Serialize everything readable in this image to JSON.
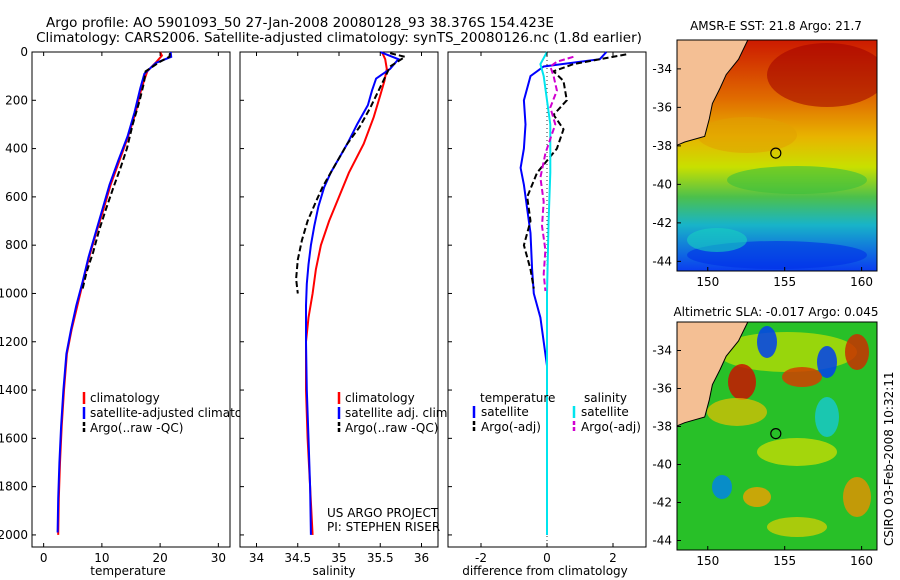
{
  "header": {
    "line1": "Argo profile: AO 5901093_50 27-Jan-2008 20080128_93 38.376S 154.423E",
    "line2": "Climatology: CARS2006. Satellite-adjusted climatology: synTS_20080126.nc (1.8d earlier)"
  },
  "side_label": "CSIRO 03-Feb-2008 10:32:11",
  "project_note": [
    "US ARGO PROJECT",
    "PI: STEPHEN RISER"
  ],
  "colors": {
    "climatology": "#ff0000",
    "satellite": "#0000ff",
    "argo": "#000000",
    "salinity_sat": "#00e5ee",
    "salinity_argo": "#d000d0",
    "land": "#f4bf94"
  },
  "chart_data": [
    {
      "type": "line",
      "id": "temperature",
      "xlabel": "temperature",
      "xlim": [
        -2,
        32
      ],
      "ylim": [
        2050,
        0
      ],
      "xticks": [
        0,
        10,
        20,
        30
      ],
      "yticks": [
        0,
        200,
        400,
        600,
        800,
        1000,
        1200,
        1400,
        1600,
        1800,
        2000
      ],
      "legend": [
        "climatology",
        "satellite-adjusted climatology",
        "Argo(..raw -QC)"
      ],
      "series": [
        {
          "name": "climatology",
          "style": "solid",
          "color": "#ff0000",
          "points": [
            [
              20.0,
              0
            ],
            [
              20.3,
              15
            ],
            [
              19.4,
              40
            ],
            [
              17.8,
              80
            ],
            [
              16.8,
              150
            ],
            [
              15.8,
              250
            ],
            [
              14.5,
              350
            ],
            [
              13.0,
              450
            ],
            [
              11.5,
              550
            ],
            [
              10.3,
              650
            ],
            [
              9.0,
              750
            ],
            [
              7.8,
              850
            ],
            [
              6.8,
              950
            ],
            [
              5.8,
              1050
            ],
            [
              4.8,
              1150
            ],
            [
              4.0,
              1250
            ],
            [
              3.5,
              1400
            ],
            [
              3.1,
              1550
            ],
            [
              2.8,
              1700
            ],
            [
              2.6,
              1850
            ],
            [
              2.5,
              2000
            ]
          ]
        },
        {
          "name": "satellite-adjusted climatology",
          "style": "solid",
          "color": "#0000ff",
          "points": [
            [
              21.8,
              0
            ],
            [
              21.9,
              20
            ],
            [
              19.3,
              45
            ],
            [
              17.3,
              90
            ],
            [
              16.6,
              150
            ],
            [
              15.6,
              250
            ],
            [
              14.4,
              350
            ],
            [
              12.8,
              450
            ],
            [
              11.3,
              550
            ],
            [
              10.1,
              650
            ],
            [
              8.9,
              750
            ],
            [
              7.7,
              850
            ],
            [
              6.7,
              950
            ],
            [
              5.6,
              1050
            ],
            [
              4.7,
              1150
            ],
            [
              3.9,
              1250
            ],
            [
              3.4,
              1400
            ],
            [
              3.0,
              1550
            ],
            [
              2.7,
              1700
            ],
            [
              2.5,
              1850
            ],
            [
              2.4,
              1990
            ]
          ]
        },
        {
          "name": "Argo(..raw -QC)",
          "style": "dashed",
          "color": "#000000",
          "points": [
            [
              21.7,
              5
            ],
            [
              21.6,
              20
            ],
            [
              20.0,
              40
            ],
            [
              17.5,
              80
            ],
            [
              17.2,
              130
            ],
            [
              16.5,
              200
            ],
            [
              15.3,
              300
            ],
            [
              14.3,
              400
            ],
            [
              13.2,
              480
            ],
            [
              12.0,
              560
            ],
            [
              10.7,
              650
            ],
            [
              9.5,
              740
            ],
            [
              8.5,
              830
            ],
            [
              7.4,
              910
            ],
            [
              6.6,
              990
            ]
          ]
        }
      ]
    },
    {
      "type": "line",
      "id": "salinity",
      "xlabel": "salinity",
      "xlim": [
        33.8,
        36.2
      ],
      "ylim": [
        2050,
        0
      ],
      "xticks": [
        34,
        34.5,
        35,
        35.5,
        36
      ],
      "legend": [
        "climatology",
        "satellite adj. clim.",
        "Argo(..raw -QC)"
      ],
      "series": [
        {
          "name": "climatology",
          "style": "solid",
          "color": "#ff0000",
          "points": [
            [
              35.52,
              0
            ],
            [
              35.56,
              30
            ],
            [
              35.58,
              70
            ],
            [
              35.55,
              120
            ],
            [
              35.5,
              180
            ],
            [
              35.42,
              270
            ],
            [
              35.3,
              380
            ],
            [
              35.12,
              500
            ],
            [
              35.0,
              600
            ],
            [
              34.88,
              700
            ],
            [
              34.78,
              800
            ],
            [
              34.72,
              900
            ],
            [
              34.68,
              1000
            ],
            [
              34.63,
              1100
            ],
            [
              34.6,
              1200
            ],
            [
              34.6,
              1400
            ],
            [
              34.62,
              1600
            ],
            [
              34.65,
              1800
            ],
            [
              34.68,
              2000
            ]
          ]
        },
        {
          "name": "satellite adj. clim.",
          "style": "solid",
          "color": "#0000ff",
          "points": [
            [
              35.5,
              0
            ],
            [
              35.72,
              30
            ],
            [
              35.62,
              70
            ],
            [
              35.45,
              110
            ],
            [
              35.4,
              160
            ],
            [
              35.35,
              220
            ],
            [
              35.22,
              300
            ],
            [
              35.1,
              380
            ],
            [
              35.0,
              440
            ],
            [
              34.9,
              500
            ],
            [
              34.82,
              560
            ],
            [
              34.75,
              640
            ],
            [
              34.7,
              720
            ],
            [
              34.66,
              800
            ],
            [
              34.63,
              880
            ],
            [
              34.61,
              960
            ],
            [
              34.6,
              1050
            ],
            [
              34.6,
              1200
            ],
            [
              34.61,
              1400
            ],
            [
              34.63,
              1600
            ],
            [
              34.65,
              1800
            ],
            [
              34.66,
              2000
            ]
          ]
        },
        {
          "name": "Argo(..raw -QC)",
          "style": "dashed",
          "color": "#000000",
          "points": [
            [
              35.62,
              5
            ],
            [
              35.8,
              20
            ],
            [
              35.62,
              60
            ],
            [
              35.55,
              110
            ],
            [
              35.48,
              160
            ],
            [
              35.38,
              230
            ],
            [
              35.25,
              310
            ],
            [
              35.1,
              380
            ],
            [
              35.0,
              440
            ],
            [
              34.9,
              500
            ],
            [
              34.8,
              560
            ],
            [
              34.72,
              620
            ],
            [
              34.62,
              700
            ],
            [
              34.55,
              780
            ],
            [
              34.5,
              860
            ],
            [
              34.48,
              940
            ],
            [
              34.5,
              1000
            ]
          ]
        }
      ]
    },
    {
      "type": "line",
      "id": "difference",
      "xlabel": "difference from climatology",
      "xlim": [
        -3,
        3
      ],
      "ylim": [
        2050,
        0
      ],
      "xticks": [
        -2,
        0,
        2
      ],
      "zero_line": true,
      "legend": {
        "temperature_title": "temperature",
        "salinity_title": "salinity",
        "temperature": [
          "satellite",
          "Argo(-adj)"
        ],
        "salinity": [
          "satellite",
          "Argo(-adj)"
        ]
      },
      "series": [
        {
          "name": "temperature satellite",
          "style": "solid",
          "color": "#0000ff",
          "points": [
            [
              1.8,
              0
            ],
            [
              1.6,
              30
            ],
            [
              -0.1,
              60
            ],
            [
              -0.5,
              100
            ],
            [
              -0.7,
              200
            ],
            [
              -0.65,
              300
            ],
            [
              -0.7,
              400
            ],
            [
              -0.8,
              480
            ],
            [
              -0.7,
              550
            ],
            [
              -0.6,
              650
            ],
            [
              -0.5,
              750
            ],
            [
              -0.45,
              900
            ],
            [
              -0.4,
              1000
            ],
            [
              -0.2,
              1100
            ],
            [
              -0.1,
              1200
            ],
            [
              0,
              1300
            ],
            [
              0,
              2000
            ]
          ]
        },
        {
          "name": "temperature Argo(-adj)",
          "style": "dashed",
          "color": "#000000",
          "points": [
            [
              2.4,
              10
            ],
            [
              1.8,
              25
            ],
            [
              0.8,
              50
            ],
            [
              0.2,
              80
            ],
            [
              0.5,
              120
            ],
            [
              0.6,
              200
            ],
            [
              0.2,
              260
            ],
            [
              0.5,
              320
            ],
            [
              0.3,
              400
            ],
            [
              -0.3,
              500
            ],
            [
              -0.6,
              600
            ],
            [
              -0.5,
              700
            ],
            [
              -0.7,
              800
            ],
            [
              -0.5,
              900
            ],
            [
              -0.4,
              980
            ]
          ]
        },
        {
          "name": "salinity satellite",
          "style": "solid",
          "color": "#00e5ee",
          "points": [
            [
              0.0,
              0
            ],
            [
              -0.2,
              50
            ],
            [
              -0.1,
              100
            ],
            [
              0.0,
              200
            ],
            [
              0.1,
              300
            ],
            [
              0.1,
              500
            ],
            [
              0.05,
              700
            ],
            [
              0.0,
              1000
            ],
            [
              0.0,
              1500
            ],
            [
              0.0,
              2000
            ]
          ]
        },
        {
          "name": "salinity Argo(-adj)",
          "style": "dashed",
          "color": "#d000d0",
          "points": [
            [
              0.8,
              20
            ],
            [
              0.3,
              40
            ],
            [
              0.1,
              60
            ],
            [
              0.2,
              100
            ],
            [
              0.3,
              160
            ],
            [
              0.1,
              230
            ],
            [
              0.25,
              300
            ],
            [
              0.1,
              360
            ],
            [
              -0.05,
              420
            ],
            [
              -0.2,
              520
            ],
            [
              -0.1,
              620
            ],
            [
              -0.15,
              720
            ],
            [
              -0.05,
              820
            ],
            [
              -0.1,
              920
            ],
            [
              -0.05,
              990
            ]
          ]
        }
      ]
    },
    {
      "type": "heatmap",
      "id": "sst_map",
      "title": "AMSR-E SST: 21.8 Argo: 21.7",
      "xlim": [
        148,
        161
      ],
      "ylim": [
        -44.5,
        -32.5
      ],
      "xticks": [
        150,
        155,
        160
      ],
      "yticks": [
        -34,
        -36,
        -38,
        -40,
        -42,
        -44
      ],
      "marker": {
        "lon": 154.423,
        "lat": -38.376
      },
      "coast": [
        [
          152.6,
          -32.5
        ],
        [
          152.0,
          -33.5
        ],
        [
          151.2,
          -34.3
        ],
        [
          150.8,
          -35.0
        ],
        [
          150.3,
          -35.8
        ],
        [
          150.1,
          -36.6
        ],
        [
          149.8,
          -37.5
        ],
        [
          148.5,
          -37.8
        ],
        [
          147.9,
          -38.0
        ]
      ]
    },
    {
      "type": "heatmap",
      "id": "sla_map",
      "title": "Altimetric SLA: -0.017 Argo: 0.045",
      "xlim": [
        148,
        161
      ],
      "ylim": [
        -44.5,
        -32.5
      ],
      "xticks": [
        150,
        155,
        160
      ],
      "yticks": [
        -34,
        -36,
        -38,
        -40,
        -42,
        -44
      ],
      "marker": {
        "lon": 154.423,
        "lat": -38.376
      },
      "coast": [
        [
          152.6,
          -32.5
        ],
        [
          152.0,
          -33.5
        ],
        [
          151.2,
          -34.3
        ],
        [
          150.8,
          -35.0
        ],
        [
          150.3,
          -35.8
        ],
        [
          150.1,
          -36.6
        ],
        [
          149.8,
          -37.5
        ],
        [
          148.5,
          -37.8
        ],
        [
          147.9,
          -38.0
        ]
      ]
    }
  ]
}
